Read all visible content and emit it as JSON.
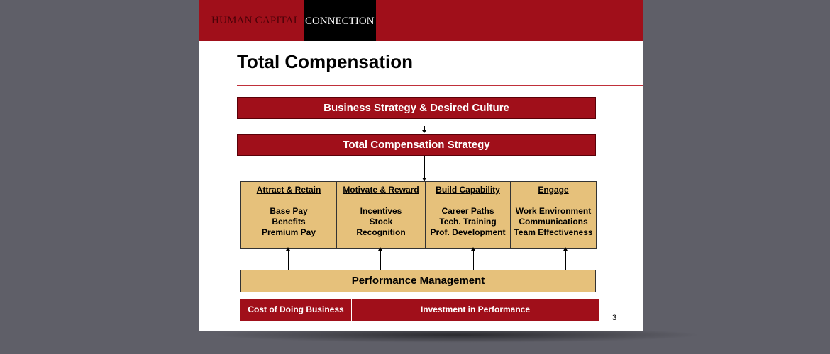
{
  "header": {
    "brand_left": "HUMAN CAPITAL",
    "brand_right": "CONNECTION"
  },
  "title": "Total Compensation",
  "boxes": {
    "business": "Business Strategy & Desired Culture",
    "strategy": "Total Compensation Strategy",
    "performance": "Performance Management"
  },
  "pillars": [
    {
      "heading": "Attract & Retain",
      "items": [
        "Base Pay",
        "Benefits",
        "Premium Pay"
      ]
    },
    {
      "heading": "Motivate & Reward",
      "items": [
        "Incentives",
        "Stock",
        "Recognition"
      ]
    },
    {
      "heading": "Build Capability",
      "items": [
        "Career Paths",
        "Tech. Training",
        "Prof. Development"
      ]
    },
    {
      "heading": "Engage",
      "items": [
        "Work Environment",
        "Communications",
        "Team Effectiveness"
      ]
    }
  ],
  "bottom": [
    "Cost of Doing Business",
    "Investment in Performance"
  ],
  "page_number": "3"
}
